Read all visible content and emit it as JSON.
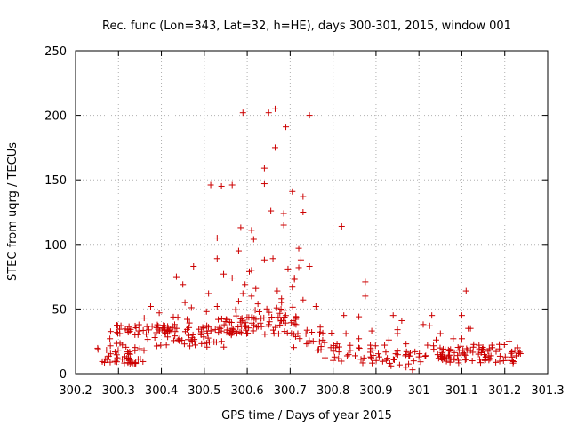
{
  "chart_data": {
    "type": "scatter",
    "title": "Rec. func (Lon=343, Lat=32, h=HE), days 300-301, 2015, window 001",
    "xlabel": "GPS time / Days of year 2015",
    "ylabel": "STEC from uqrg / TECUs",
    "xlim": [
      300.2,
      301.3
    ],
    "ylim": [
      0,
      250
    ],
    "grid": true,
    "marker": "+",
    "color": "#cc0000",
    "x_ticks": [
      {
        "value": 300.2,
        "label": "300.2"
      },
      {
        "value": 300.3,
        "label": "300.3"
      },
      {
        "value": 300.4,
        "label": "300.4"
      },
      {
        "value": 300.5,
        "label": "300.5"
      },
      {
        "value": 300.6,
        "label": "300.6"
      },
      {
        "value": 300.7,
        "label": "300.7"
      },
      {
        "value": 300.8,
        "label": "300.8"
      },
      {
        "value": 300.9,
        "label": "300.9"
      },
      {
        "value": 301.0,
        "label": "301"
      },
      {
        "value": 301.1,
        "label": "301.1"
      },
      {
        "value": 301.2,
        "label": "301.2"
      },
      {
        "value": 301.3,
        "label": "301.3"
      }
    ],
    "y_ticks": [
      {
        "value": 0,
        "label": "0"
      },
      {
        "value": 50,
        "label": "50"
      },
      {
        "value": 100,
        "label": "100"
      },
      {
        "value": 150,
        "label": "150"
      },
      {
        "value": 200,
        "label": "200"
      },
      {
        "value": 250,
        "label": "250"
      }
    ],
    "outlier_points": [
      [
        300.59,
        202
      ],
      [
        300.65,
        202
      ],
      [
        300.665,
        205
      ],
      [
        300.745,
        200
      ],
      [
        300.69,
        191
      ],
      [
        300.665,
        175
      ],
      [
        300.64,
        159
      ],
      [
        300.515,
        146
      ],
      [
        300.54,
        145
      ],
      [
        300.565,
        146
      ],
      [
        300.64,
        147
      ],
      [
        300.705,
        141
      ],
      [
        300.73,
        137
      ],
      [
        300.655,
        126
      ],
      [
        300.685,
        124
      ],
      [
        300.73,
        125
      ],
      [
        300.61,
        111
      ],
      [
        300.615,
        104
      ],
      [
        300.53,
        105
      ],
      [
        300.585,
        113
      ],
      [
        300.685,
        115
      ],
      [
        300.82,
        114
      ],
      [
        300.72,
        97
      ],
      [
        300.58,
        95
      ],
      [
        300.53,
        89
      ],
      [
        300.725,
        88
      ],
      [
        300.66,
        89
      ],
      [
        300.64,
        88
      ],
      [
        300.745,
        83
      ],
      [
        300.695,
        81
      ],
      [
        300.475,
        83
      ],
      [
        300.605,
        79
      ],
      [
        300.61,
        80
      ],
      [
        300.72,
        82
      ],
      [
        300.545,
        77
      ],
      [
        300.565,
        74
      ],
      [
        300.435,
        75
      ],
      [
        300.71,
        74
      ],
      [
        300.71,
        73
      ],
      [
        300.875,
        71
      ],
      [
        300.705,
        67
      ],
      [
        300.62,
        66
      ],
      [
        300.595,
        69
      ],
      [
        300.45,
        69
      ],
      [
        300.67,
        64
      ],
      [
        300.59,
        62
      ],
      [
        300.51,
        62
      ],
      [
        300.61,
        60
      ],
      [
        300.875,
        60
      ],
      [
        301.11,
        64
      ],
      [
        300.73,
        57
      ],
      [
        300.68,
        58
      ],
      [
        300.455,
        55
      ],
      [
        300.68,
        55
      ],
      [
        300.58,
        56
      ],
      [
        300.625,
        54
      ],
      [
        300.53,
        52
      ],
      [
        300.47,
        51
      ],
      [
        300.505,
        48
      ],
      [
        300.76,
        52
      ],
      [
        300.375,
        52
      ],
      [
        300.395,
        47
      ],
      [
        300.825,
        45
      ],
      [
        300.86,
        44
      ],
      [
        300.94,
        45
      ],
      [
        301.03,
        45
      ],
      [
        301.1,
        45
      ],
      [
        300.96,
        41
      ],
      [
        300.36,
        43
      ],
      [
        300.46,
        42
      ],
      [
        301.12,
        35
      ],
      [
        301.115,
        35
      ],
      [
        301.01,
        38
      ],
      [
        301.025,
        37
      ],
      [
        300.89,
        33
      ],
      [
        300.95,
        34
      ],
      [
        300.28,
        27
      ],
      [
        300.77,
        36
      ],
      [
        300.78,
        24
      ],
      [
        300.83,
        31
      ],
      [
        300.86,
        27
      ],
      [
        300.92,
        22
      ],
      [
        300.93,
        26
      ],
      [
        300.95,
        31
      ],
      [
        300.97,
        23
      ],
      [
        301.02,
        22
      ],
      [
        301.05,
        31
      ],
      [
        301.08,
        27
      ],
      [
        301.1,
        27
      ],
      [
        301.14,
        22
      ],
      [
        301.17,
        22
      ],
      [
        301.21,
        25
      ],
      [
        301.23,
        20
      ],
      [
        300.97,
        5
      ],
      [
        300.985,
        3
      ],
      [
        300.935,
        6
      ],
      [
        301.04,
        26
      ],
      [
        300.98,
        16
      ],
      [
        301.0,
        13
      ],
      [
        301.09,
        14
      ]
    ],
    "band_ranges": [
      [
        300.25,
        300.36,
        7,
        12
      ],
      [
        300.25,
        300.36,
        12,
        24
      ],
      [
        300.28,
        300.47,
        30,
        38
      ],
      [
        300.36,
        300.55,
        20,
        36
      ],
      [
        300.42,
        300.6,
        22,
        44
      ],
      [
        300.55,
        300.72,
        30,
        44
      ],
      [
        300.55,
        300.72,
        36,
        52
      ],
      [
        300.7,
        300.82,
        18,
        34
      ],
      [
        300.78,
        300.9,
        8,
        22
      ],
      [
        300.88,
        300.98,
        6,
        18
      ],
      [
        300.98,
        301.08,
        8,
        22
      ],
      [
        301.05,
        301.24,
        8,
        20
      ],
      [
        301.08,
        301.24,
        10,
        24
      ]
    ]
  }
}
